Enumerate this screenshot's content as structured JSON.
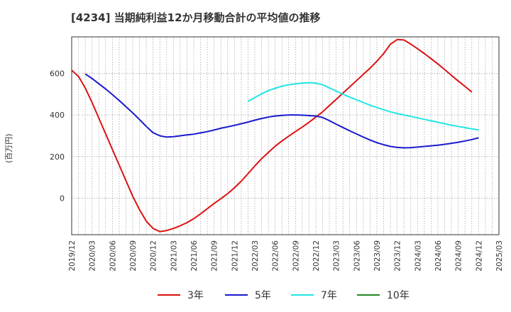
{
  "chart_data": {
    "type": "line",
    "title": "[4234]  当期純利益12か月移動合計の平均値の推移",
    "ylabel": "(百万円)",
    "xlabel": "",
    "ylim": [
      -175,
      775
    ],
    "yticks": [
      0,
      200,
      400,
      600
    ],
    "x_ticks": [
      "2019/12",
      "2020/03",
      "2020/06",
      "2020/09",
      "2020/12",
      "2021/03",
      "2021/06",
      "2021/09",
      "2021/12",
      "2022/03",
      "2022/06",
      "2022/09",
      "2022/12",
      "2023/03",
      "2023/06",
      "2023/09",
      "2023/12",
      "2024/03",
      "2024/06",
      "2024/09",
      "2024/12",
      "2025/03"
    ],
    "grid": true,
    "legend_position": "bottom",
    "series": [
      {
        "name": "3年",
        "color": "#dd1111",
        "points": [
          [
            "2019/12",
            615
          ],
          [
            "2020/01",
            585
          ],
          [
            "2020/02",
            530
          ],
          [
            "2020/03",
            460
          ],
          [
            "2020/04",
            385
          ],
          [
            "2020/05",
            310
          ],
          [
            "2020/06",
            235
          ],
          [
            "2020/07",
            160
          ],
          [
            "2020/08",
            85
          ],
          [
            "2020/09",
            10
          ],
          [
            "2020/10",
            -55
          ],
          [
            "2020/11",
            -110
          ],
          [
            "2020/12",
            -145
          ],
          [
            "2021/01",
            -160
          ],
          [
            "2021/02",
            -155
          ],
          [
            "2021/03",
            -145
          ],
          [
            "2021/04",
            -132
          ],
          [
            "2021/05",
            -117
          ],
          [
            "2021/06",
            -98
          ],
          [
            "2021/07",
            -75
          ],
          [
            "2021/08",
            -50
          ],
          [
            "2021/09",
            -25
          ],
          [
            "2021/10",
            -2
          ],
          [
            "2021/11",
            22
          ],
          [
            "2021/12",
            50
          ],
          [
            "2022/01",
            82
          ],
          [
            "2022/02",
            118
          ],
          [
            "2022/03",
            155
          ],
          [
            "2022/04",
            190
          ],
          [
            "2022/05",
            220
          ],
          [
            "2022/06",
            250
          ],
          [
            "2022/07",
            275
          ],
          [
            "2022/08",
            298
          ],
          [
            "2022/09",
            320
          ],
          [
            "2022/10",
            342
          ],
          [
            "2022/11",
            365
          ],
          [
            "2022/12",
            390
          ],
          [
            "2023/01",
            415
          ],
          [
            "2023/02",
            445
          ],
          [
            "2023/03",
            475
          ],
          [
            "2023/04",
            505
          ],
          [
            "2023/05",
            535
          ],
          [
            "2023/06",
            565
          ],
          [
            "2023/07",
            595
          ],
          [
            "2023/08",
            625
          ],
          [
            "2023/09",
            658
          ],
          [
            "2023/10",
            695
          ],
          [
            "2023/11",
            740
          ],
          [
            "2023/12",
            762
          ],
          [
            "2024/01",
            760
          ],
          [
            "2024/02",
            740
          ],
          [
            "2024/03",
            718
          ],
          [
            "2024/04",
            695
          ],
          [
            "2024/05",
            670
          ],
          [
            "2024/06",
            645
          ],
          [
            "2024/07",
            618
          ],
          [
            "2024/08",
            590
          ],
          [
            "2024/09",
            563
          ],
          [
            "2024/10",
            537
          ],
          [
            "2024/11",
            510
          ]
        ]
      },
      {
        "name": "5年",
        "color": "#1a1acc",
        "points": [
          [
            "2020/02",
            597
          ],
          [
            "2020/03",
            575
          ],
          [
            "2020/04",
            550
          ],
          [
            "2020/05",
            525
          ],
          [
            "2020/06",
            498
          ],
          [
            "2020/07",
            470
          ],
          [
            "2020/08",
            440
          ],
          [
            "2020/09",
            410
          ],
          [
            "2020/10",
            378
          ],
          [
            "2020/11",
            345
          ],
          [
            "2020/12",
            315
          ],
          [
            "2021/01",
            300
          ],
          [
            "2021/02",
            294
          ],
          [
            "2021/03",
            296
          ],
          [
            "2021/04",
            300
          ],
          [
            "2021/05",
            304
          ],
          [
            "2021/06",
            308
          ],
          [
            "2021/07",
            314
          ],
          [
            "2021/08",
            320
          ],
          [
            "2021/09",
            328
          ],
          [
            "2021/10",
            336
          ],
          [
            "2021/11",
            343
          ],
          [
            "2021/12",
            350
          ],
          [
            "2022/01",
            358
          ],
          [
            "2022/02",
            366
          ],
          [
            "2022/03",
            375
          ],
          [
            "2022/04",
            383
          ],
          [
            "2022/05",
            390
          ],
          [
            "2022/06",
            395
          ],
          [
            "2022/07",
            398
          ],
          [
            "2022/08",
            400
          ],
          [
            "2022/09",
            400
          ],
          [
            "2022/10",
            399
          ],
          [
            "2022/11",
            397
          ],
          [
            "2022/12",
            395
          ],
          [
            "2023/01",
            388
          ],
          [
            "2023/02",
            373
          ],
          [
            "2023/03",
            356
          ],
          [
            "2023/04",
            340
          ],
          [
            "2023/05",
            324
          ],
          [
            "2023/06",
            309
          ],
          [
            "2023/07",
            294
          ],
          [
            "2023/08",
            280
          ],
          [
            "2023/09",
            267
          ],
          [
            "2023/10",
            257
          ],
          [
            "2023/11",
            249
          ],
          [
            "2023/12",
            244
          ],
          [
            "2024/01",
            242
          ],
          [
            "2024/02",
            243
          ],
          [
            "2024/03",
            246
          ],
          [
            "2024/04",
            249
          ],
          [
            "2024/05",
            252
          ],
          [
            "2024/06",
            255
          ],
          [
            "2024/07",
            259
          ],
          [
            "2024/08",
            264
          ],
          [
            "2024/09",
            269
          ],
          [
            "2024/10",
            275
          ],
          [
            "2024/11",
            282
          ],
          [
            "2024/12",
            290
          ]
        ]
      },
      {
        "name": "7年",
        "color": "#22e5e5",
        "points": [
          [
            "2022/02",
            465
          ],
          [
            "2022/03",
            484
          ],
          [
            "2022/04",
            502
          ],
          [
            "2022/05",
            517
          ],
          [
            "2022/06",
            528
          ],
          [
            "2022/07",
            538
          ],
          [
            "2022/08",
            545
          ],
          [
            "2022/09",
            550
          ],
          [
            "2022/10",
            553
          ],
          [
            "2022/11",
            555
          ],
          [
            "2022/12",
            553
          ],
          [
            "2023/01",
            545
          ],
          [
            "2023/02",
            530
          ],
          [
            "2023/03",
            515
          ],
          [
            "2023/04",
            500
          ],
          [
            "2023/05",
            486
          ],
          [
            "2023/06",
            473
          ],
          [
            "2023/07",
            460
          ],
          [
            "2023/08",
            447
          ],
          [
            "2023/09",
            436
          ],
          [
            "2023/10",
            425
          ],
          [
            "2023/11",
            415
          ],
          [
            "2023/12",
            407
          ],
          [
            "2024/01",
            400
          ],
          [
            "2024/02",
            393
          ],
          [
            "2024/03",
            386
          ],
          [
            "2024/04",
            379
          ],
          [
            "2024/05",
            372
          ],
          [
            "2024/06",
            365
          ],
          [
            "2024/07",
            358
          ],
          [
            "2024/08",
            351
          ],
          [
            "2024/09",
            345
          ],
          [
            "2024/10",
            339
          ],
          [
            "2024/11",
            333
          ],
          [
            "2024/12",
            328
          ]
        ]
      },
      {
        "name": "10年",
        "color": "#228822",
        "points": []
      }
    ]
  }
}
